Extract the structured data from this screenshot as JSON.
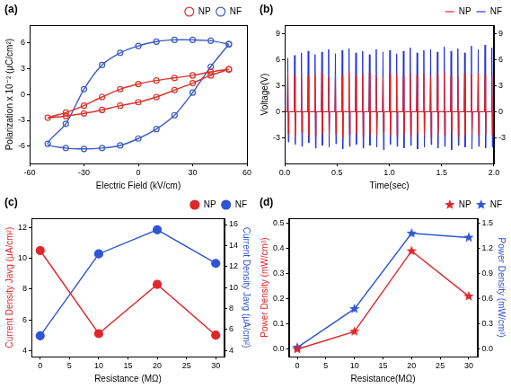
{
  "chart_data": [
    {
      "type": "scatter",
      "title": "(a)",
      "xlabel": "Electric Field (kV/cm)",
      "ylabel": "Polarization x 10⁻² (μC/cm²)",
      "x": [
        50,
        40,
        30,
        20,
        10,
        0,
        -10,
        -20,
        -30,
        -40,
        -50,
        -40,
        -30,
        -20,
        -10,
        0,
        10,
        20,
        30,
        40,
        50
      ],
      "series": [
        {
          "name": "NP",
          "color": "#d9342b",
          "marker": "circle_open",
          "line_style": "solid",
          "values": [
            2.9,
            2.6,
            2.2,
            1.9,
            1.6,
            1.2,
            0.6,
            -0.3,
            -1.3,
            -2.1,
            -2.7,
            -2.5,
            -2.2,
            -1.8,
            -1.3,
            -0.9,
            -0.3,
            0.5,
            1.3,
            2.2,
            2.9
          ]
        },
        {
          "name": "NF",
          "color": "#3a5bc4",
          "marker": "circle_open",
          "line_style": "solid",
          "values": [
            5.8,
            6.2,
            6.3,
            6.3,
            6.1,
            5.6,
            4.8,
            3.4,
            0.6,
            -3.4,
            -5.7,
            -6.2,
            -6.3,
            -6.2,
            -5.9,
            -5.1,
            -4.0,
            -2.4,
            0.2,
            3.2,
            5.8
          ]
        }
      ],
      "xlim": [
        -60,
        60
      ],
      "xticks": [
        -60,
        -30,
        0,
        30,
        60
      ],
      "ylim": [
        -8,
        8
      ],
      "yticks": [
        -6,
        -3,
        0,
        3,
        6
      ],
      "grid": false,
      "legend": "top"
    },
    {
      "type": "line",
      "title": "(b)",
      "xlabel": "Time(sec)",
      "ylabel": "Voltage(V)",
      "x": [
        0,
        0.025,
        0.03,
        0.035,
        0.04,
        0.09,
        0.095,
        0.1,
        0.105,
        0.155,
        0.16,
        0.165,
        0.17,
        0.22,
        0.225,
        0.23,
        0.235,
        0.285,
        0.29,
        0.295,
        0.3,
        0.35,
        0.355,
        0.36,
        0.365,
        0.415,
        0.42,
        0.425,
        0.43,
        0.48,
        0.485,
        0.49,
        0.495,
        0.545,
        0.55,
        0.555,
        0.56,
        0.61,
        0.615,
        0.62,
        0.625,
        0.675,
        0.68,
        0.685,
        0.69,
        0.74,
        0.745,
        0.75,
        0.755,
        0.805,
        0.81,
        0.815,
        0.82,
        0.87,
        0.875,
        0.88,
        0.885,
        0.935,
        0.94,
        0.945,
        0.95,
        1.0,
        1.005,
        1.01,
        1.015,
        1.065,
        1.07,
        1.075,
        1.08,
        1.13,
        1.135,
        1.14,
        1.145,
        1.195,
        1.2,
        1.205,
        1.21,
        1.26,
        1.265,
        1.27,
        1.275,
        1.325,
        1.33,
        1.335,
        1.34,
        1.39,
        1.395,
        1.4,
        1.405,
        1.455,
        1.46,
        1.465,
        1.47,
        1.52,
        1.525,
        1.53,
        1.535,
        1.585,
        1.59,
        1.595,
        1.6,
        1.65,
        1.655,
        1.66,
        1.665,
        1.715,
        1.72,
        1.725,
        1.73,
        1.78,
        1.785,
        1.79,
        1.795,
        1.845,
        1.85,
        1.855,
        1.86,
        1.91,
        1.915,
        1.92,
        1.925,
        1.975,
        1.98,
        1.985,
        1.99,
        2
      ],
      "series": [
        {
          "name": "NP",
          "color": "#e8201a",
          "marker": "none",
          "line_style": "solid",
          "values": [
            0,
            0,
            4.6,
            -2.6,
            0,
            0,
            4.2,
            -2.8,
            0,
            0,
            4.4,
            -2.4,
            0,
            0,
            4.1,
            -2.7,
            0,
            0,
            4.3,
            -2.9,
            0,
            0,
            4.5,
            -2.5,
            0,
            0,
            4.0,
            -2.8,
            0,
            0,
            4.4,
            -2.6,
            0,
            0,
            4.2,
            -3.0,
            0,
            0,
            4.6,
            -2.7,
            0,
            0,
            4.1,
            -2.5,
            0,
            0,
            4.3,
            -2.9,
            0,
            0,
            4.5,
            -2.6,
            0,
            0,
            4.2,
            -2.8,
            0,
            0,
            4.0,
            -2.4,
            0,
            0,
            4.4,
            -2.7,
            0,
            0,
            4.3,
            -2.9,
            0,
            0,
            4.1,
            -2.6,
            0,
            0,
            4.5,
            -2.8,
            0,
            0,
            4.2,
            -2.5,
            0,
            0,
            4.4,
            -2.7,
            0,
            0,
            4.0,
            -3.0,
            0,
            0,
            4.3,
            -2.6,
            0,
            0,
            4.6,
            -2.8,
            0,
            0,
            4.2,
            -2.4,
            0,
            0,
            4.1,
            -2.9,
            0,
            0,
            4.4,
            -2.7,
            0,
            0,
            4.3,
            -2.5,
            0,
            0,
            4.5,
            -2.8,
            0,
            0,
            4.2,
            -2.6,
            0,
            0,
            4.4,
            -2.7,
            0,
            0
          ]
        },
        {
          "name": "NF",
          "color": "#2233dd",
          "marker": "none",
          "line_style": "solid",
          "values": [
            0,
            0,
            6.2,
            -3.5,
            0,
            0,
            6.5,
            -3.8,
            0,
            0,
            6.8,
            -4.0,
            0,
            0,
            7.0,
            -3.6,
            0,
            0,
            6.6,
            -4.2,
            0,
            0,
            6.9,
            -3.9,
            0,
            0,
            7.2,
            -4.1,
            0,
            0,
            6.7,
            -3.7,
            0,
            0,
            7.1,
            -4.3,
            0,
            0,
            7.3,
            -4.0,
            0,
            0,
            6.8,
            -3.8,
            0,
            0,
            7.0,
            -4.2,
            0,
            0,
            6.6,
            -3.9,
            0,
            0,
            7.2,
            -4.1,
            0,
            0,
            6.9,
            -4.4,
            0,
            0,
            7.1,
            -3.8,
            0,
            0,
            6.7,
            -4.0,
            0,
            0,
            7.0,
            -4.2,
            0,
            0,
            7.4,
            -3.9,
            0,
            0,
            6.8,
            -4.3,
            0,
            0,
            7.1,
            -4.1,
            0,
            0,
            7.2,
            -3.8,
            0,
            0,
            6.9,
            -4.2,
            0,
            0,
            7.5,
            -4.0,
            0,
            0,
            7.0,
            -4.4,
            0,
            0,
            7.3,
            -3.9,
            0,
            0,
            6.8,
            -4.1,
            0,
            0,
            7.6,
            -4.3,
            0,
            0,
            7.2,
            -4.0,
            0,
            0,
            7.7,
            -4.2,
            0,
            0,
            7.4,
            -4.1,
            0,
            0
          ]
        }
      ],
      "xlim": [
        0,
        2
      ],
      "xticks": [
        {
          "value": 0,
          "label": "0.0"
        },
        0.5,
        {
          "value": 1,
          "label": "1.0"
        },
        1.5,
        {
          "value": 2,
          "label": "2.0"
        }
      ],
      "ylim": [
        -6,
        10
      ],
      "yticks": [
        -3,
        0,
        3,
        6,
        9
      ],
      "y2lim": [
        -6,
        10
      ],
      "y2ticks": [
        -3,
        0,
        3,
        6,
        9
      ],
      "grid": false,
      "legend": "top"
    },
    {
      "type": "line",
      "title": "(c)",
      "xlabel": "Resistance (MΩ)",
      "ylabel": "Current Density Javg (μA/cm²)",
      "y2label": "Current Density Javg (μA/cm²)",
      "x": [
        0,
        10,
        20,
        30
      ],
      "series": [
        {
          "name": "NP",
          "color": "#e0262a",
          "marker": "circle",
          "line_style": "solid",
          "values": [
            10.5,
            5.1,
            8.3,
            5.0
          ]
        },
        {
          "name": "NF",
          "color": "#2f55d4",
          "marker": "circle",
          "line_style": "solid",
          "axis": "y2",
          "values": [
            5.4,
            13.2,
            15.5,
            12.3
          ]
        }
      ],
      "xlim": [
        -1.5,
        31.5
      ],
      "xticks": [
        0,
        5,
        10,
        15,
        20,
        25,
        30
      ],
      "ylim": [
        3.6,
        12.6
      ],
      "yticks": [
        4,
        6,
        8,
        10,
        12
      ],
      "y2lim": [
        3.4,
        16.6
      ],
      "y2ticks": [
        4,
        6,
        8,
        10,
        12,
        14,
        16
      ],
      "grid": false,
      "legend": "top"
    },
    {
      "type": "line",
      "title": "(d)",
      "xlabel": "Resistance(MΩ)",
      "ylabel": "Power Density (mW/cm³)",
      "y2label": "Power Density (mW/cm³)",
      "x": [
        0,
        10,
        20,
        30
      ],
      "series": [
        {
          "name": "NP",
          "color": "#e0262a",
          "marker": "star",
          "line_style": "solid",
          "values": [
            0.0,
            0.07,
            0.39,
            0.21
          ]
        },
        {
          "name": "NF",
          "color": "#2f55d4",
          "marker": "star",
          "line_style": "solid",
          "axis": "y2",
          "values": [
            0.02,
            0.48,
            1.38,
            1.33
          ]
        }
      ],
      "xlim": [
        -1.5,
        31.5
      ],
      "xticks": [
        0,
        5,
        10,
        15,
        20,
        25,
        30
      ],
      "ylim": [
        -0.03,
        0.52
      ],
      "yticks": [
        {
          "value": 0,
          "label": "0.0"
        },
        0.1,
        0.2,
        0.3,
        0.4,
        0.5
      ],
      "y2lim": [
        -0.09,
        1.56
      ],
      "y2ticks": [
        {
          "value": 0,
          "label": "0.0"
        },
        0.3,
        0.6,
        0.9,
        1.2,
        1.5
      ],
      "grid": false,
      "legend": "top"
    }
  ]
}
